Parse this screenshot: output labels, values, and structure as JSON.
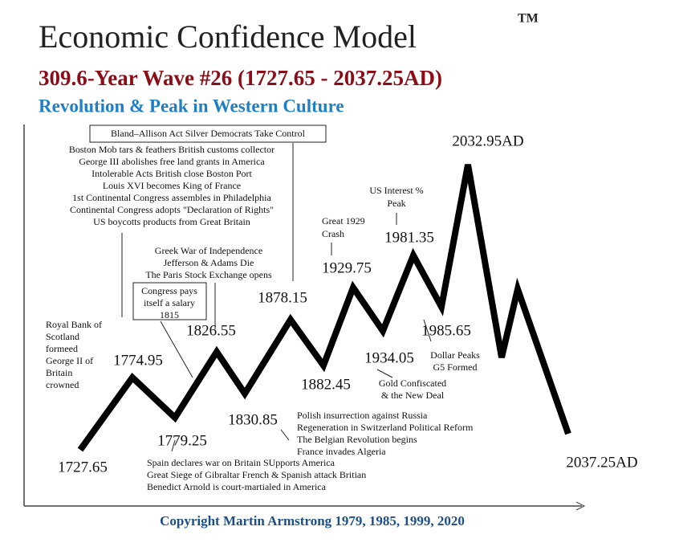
{
  "title": "Economic Confidence Model",
  "trademark": "TM",
  "subtitle": "309.6-Year Wave #26 (1727.65 - 2037.25AD)",
  "tagline": "Revolution & Peak in Western Culture",
  "wave_points": [
    "1727.65",
    "1774.95",
    "1779.25",
    "1826.55",
    "1830.85",
    "1878.15",
    "1882.45",
    "1929.75",
    "1934.05",
    "1981.35",
    "1985.65",
    "2032.95AD",
    "2037.25AD"
  ],
  "annotations": [
    {
      "lines": [
        "Bland–Allison Act Silver Democrats Take Control"
      ]
    },
    {
      "lines": [
        "Boston Mob tars & feathers British customs collector",
        "George III abolishes free land grants in America",
        "Intolerable Acts British close Boston Port",
        "Louis XVI becomes King of France",
        "1st Continental Congress assembles in Philadelphia",
        "Continental Congress adopts \"Declaration of Rights\"",
        "US boycotts products from Great Britain"
      ]
    },
    {
      "lines": [
        "Greek War of Independence",
        "Jefferson & Adams Die",
        "The Paris Stock Exchange opens"
      ]
    },
    {
      "lines": [
        "Congress pays",
        "itself a salary",
        "1815"
      ]
    },
    {
      "lines": [
        "Royal Bank of",
        "Scotland",
        "formeed",
        "George II of",
        "Britain",
        "crowned"
      ]
    },
    {
      "lines": [
        "Great 1929",
        "Crash"
      ]
    },
    {
      "lines": [
        "US Interest %",
        "Peak"
      ]
    },
    {
      "lines": [
        "Dollar Peaks",
        "G5 Formed"
      ]
    },
    {
      "lines": [
        "Gold Confiscated",
        "& the New Deal"
      ]
    },
    {
      "lines": [
        "Polish insurrection against Russia",
        "Regeneration in Switzerland Political Reform",
        "The Belgian Revolution begins",
        "France invades Algeria"
      ]
    },
    {
      "lines": [
        "Spain declares war on Britain SUpports America",
        "Great Siege of Gibraltar French & Spanish attack Britian",
        "Benedict Arnold is court-martialed in America"
      ]
    }
  ],
  "copyright": "Copyright Martin Armstrong 1979, 1985, 1999, 2020"
}
